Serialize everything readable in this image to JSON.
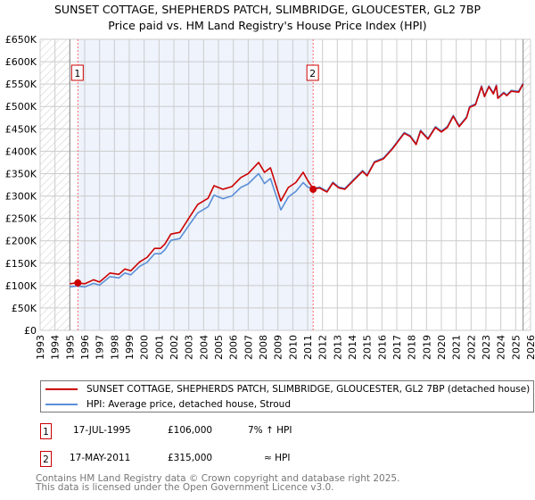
{
  "title": "SUNSET COTTAGE, SHEPHERDS PATCH, SLIMBRIDGE, GLOUCESTER, GL2 7BP",
  "subtitle": "Price paid vs. HM Land Registry's House Price Index (HPI)",
  "colors": {
    "property": "#cc0000",
    "hpi": "#5b8fd6",
    "shade": "#eef3fc"
  },
  "chart_data": {
    "type": "line",
    "title": "SUNSET COTTAGE, SHEPHERDS PATCH, SLIMBRIDGE, GLOUCESTER, GL2 7BP",
    "subtitle": "Price paid vs. HM Land Registry's House Price Index (HPI)",
    "xlim": [
      1993,
      2026
    ],
    "ylim": [
      0,
      650000
    ],
    "grid": true,
    "x_ticks": [
      "1993",
      "1994",
      "1995",
      "1996",
      "1997",
      "1998",
      "1999",
      "2000",
      "2001",
      "2002",
      "2003",
      "2004",
      "2005",
      "2006",
      "2007",
      "2008",
      "2009",
      "2010",
      "2011",
      "2012",
      "2013",
      "2014",
      "2015",
      "2016",
      "2017",
      "2018",
      "2019",
      "2020",
      "2021",
      "2022",
      "2023",
      "2024",
      "2025",
      "2026"
    ],
    "y_ticks": [
      {
        "value": 0,
        "label": "£0"
      },
      {
        "value": 50000,
        "label": "£50K"
      },
      {
        "value": 100000,
        "label": "£100K"
      },
      {
        "value": 150000,
        "label": "£150K"
      },
      {
        "value": 200000,
        "label": "£200K"
      },
      {
        "value": 250000,
        "label": "£250K"
      },
      {
        "value": 300000,
        "label": "£300K"
      },
      {
        "value": 350000,
        "label": "£350K"
      },
      {
        "value": 400000,
        "label": "£400K"
      },
      {
        "value": 450000,
        "label": "£450K"
      },
      {
        "value": 500000,
        "label": "£500K"
      },
      {
        "value": 550000,
        "label": "£550K"
      },
      {
        "value": 600000,
        "label": "£600K"
      },
      {
        "value": 650000,
        "label": "£650K"
      }
    ],
    "hatched_ranges": [
      [
        1993,
        1995.0
      ],
      [
        2025.5,
        2026
      ]
    ],
    "shaded_range": [
      1995.54,
      2011.37
    ],
    "x": [
      1995.0,
      1995.5,
      1996.0,
      1996.6,
      1997.0,
      1997.7,
      1998.3,
      1998.7,
      1999.1,
      1999.7,
      2000.2,
      2000.7,
      2001.1,
      2001.4,
      2001.8,
      2002.4,
      2003.0,
      2003.6,
      2004.3,
      2004.7,
      2005.3,
      2005.9,
      2006.5,
      2007.0,
      2007.7,
      2008.1,
      2008.5,
      2009.2,
      2009.7,
      2010.2,
      2010.7,
      2011.0,
      2011.4,
      2011.8,
      2012.3,
      2012.7,
      2013.1,
      2013.5,
      2014.1,
      2014.7,
      2015.0,
      2015.5,
      2016.1,
      2016.7,
      2017.5,
      2017.9,
      2018.3,
      2018.6,
      2019.1,
      2019.6,
      2020.0,
      2020.4,
      2020.8,
      2021.2,
      2021.7,
      2021.9,
      2022.3,
      2022.7,
      2022.9,
      2023.2,
      2023.5,
      2023.7,
      2023.8,
      2024.2,
      2024.4,
      2024.7,
      2025.2,
      2025.5
    ],
    "series": [
      {
        "name": "SUNSET COTTAGE, SHEPHERDS PATCH, SLIMBRIDGE, GLOUCESTER, GL2 7BP (detached house)",
        "color": "#cc0000",
        "values_k": [
          104,
          106,
          104,
          113,
          108,
          128,
          125,
          137,
          133,
          153,
          163,
          183,
          183,
          193,
          215,
          219,
          250,
          281,
          295,
          323,
          315,
          321,
          341,
          350,
          375,
          353,
          363,
          289,
          319,
          330,
          353,
          335,
          315,
          318,
          309,
          329,
          318,
          315,
          335,
          355,
          345,
          375,
          383,
          405,
          440,
          433,
          415,
          445,
          427,
          453,
          443,
          453,
          478,
          455,
          475,
          498,
          504,
          544,
          522,
          544,
          528,
          546,
          518,
          530,
          524,
          534,
          532,
          550
        ]
      },
      {
        "name": "HPI: Average price, detached house, Stroud",
        "color": "#5b8fd6",
        "values_k": [
          97,
          99,
          97,
          105,
          101,
          120,
          117,
          128,
          124,
          143,
          152,
          171,
          171,
          180,
          201,
          205,
          234,
          262,
          276,
          302,
          294,
          300,
          319,
          327,
          350,
          328,
          339,
          269,
          298,
          310,
          330,
          320,
          317,
          320,
          311,
          331,
          320,
          317,
          337,
          357,
          347,
          377,
          385,
          407,
          442,
          435,
          417,
          447,
          429,
          455,
          445,
          455,
          480,
          457,
          477,
          500,
          506,
          546,
          524,
          546,
          530,
          548,
          520,
          532,
          526,
          536,
          534,
          552
        ]
      }
    ],
    "sales": [
      {
        "label": "1",
        "year": 1995.54,
        "price": 106000
      },
      {
        "label": "2",
        "year": 2011.37,
        "price": 315000
      }
    ]
  },
  "legend": {
    "property": "SUNSET COTTAGE, SHEPHERDS PATCH, SLIMBRIDGE, GLOUCESTER, GL2 7BP (detached house)",
    "hpi": "HPI: Average price, detached house, Stroud"
  },
  "transactions": [
    {
      "num": "1",
      "date": "17-JUL-1995",
      "price": "£106,000",
      "hpi": "7% ↑ HPI"
    },
    {
      "num": "2",
      "date": "17-MAY-2011",
      "price": "£315,000",
      "hpi": "≈ HPI"
    }
  ],
  "footer": {
    "line1": "Contains HM Land Registry data © Crown copyright and database right 2025.",
    "line2": "This data is licensed under the Open Government Licence v3.0."
  }
}
